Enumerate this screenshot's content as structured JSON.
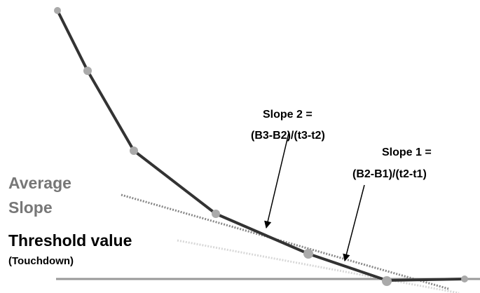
{
  "labels": {
    "average_slope": [
      "Average",
      "Slope"
    ],
    "threshold": "Threshold value",
    "threshold_note": "(Touchdown)",
    "slope2_title": "Slope 2 =",
    "slope2_formula": "(B3-B2)/(t3-t2)",
    "slope1_title": "Slope 1 =",
    "slope1_formula": "(B2-B1)/(t2-t1)"
  }
}
